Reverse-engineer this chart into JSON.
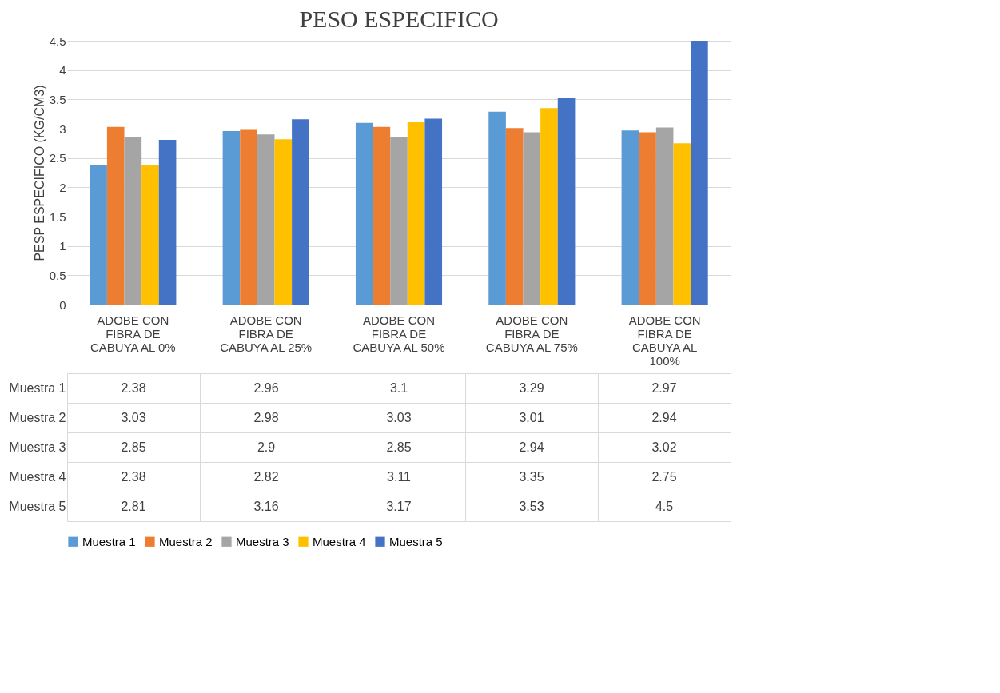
{
  "chart_data": {
    "type": "bar",
    "title": "PESO ESPECIFICO",
    "ylabel": "PESP ESPECIFICO (KG/CM3)",
    "categories": [
      "ADOBE CON FIBRA DE CABUYA AL 0%",
      "ADOBE CON FIBRA DE CABUYA AL 25%",
      "ADOBE CON FIBRA DE CABUYA AL 50%",
      "ADOBE CON FIBRA DE CABUYA AL 75%",
      "ADOBE CON FIBRA DE CABUYA AL 100%"
    ],
    "series": [
      {
        "name": "Muestra 1",
        "color": "#5b9bd5",
        "values": [
          2.38,
          2.96,
          3.1,
          3.29,
          2.97
        ]
      },
      {
        "name": "Muestra 2",
        "color": "#ed7d31",
        "values": [
          3.03,
          2.98,
          3.03,
          3.01,
          2.94
        ]
      },
      {
        "name": "Muestra 3",
        "color": "#a5a5a5",
        "values": [
          2.85,
          2.9,
          2.85,
          2.94,
          3.02
        ]
      },
      {
        "name": "Muestra 4",
        "color": "#ffc000",
        "values": [
          2.38,
          2.82,
          3.11,
          3.35,
          2.75
        ]
      },
      {
        "name": "Muestra 5",
        "color": "#4472c4",
        "values": [
          2.81,
          3.16,
          3.17,
          3.53,
          4.5
        ]
      }
    ],
    "ylim": [
      0,
      4.5
    ],
    "yticks": [
      0,
      0.5,
      1,
      1.5,
      2,
      2.5,
      3,
      3.5,
      4,
      4.5
    ],
    "grid": "y",
    "legend": "bottom",
    "data_labels": true
  }
}
